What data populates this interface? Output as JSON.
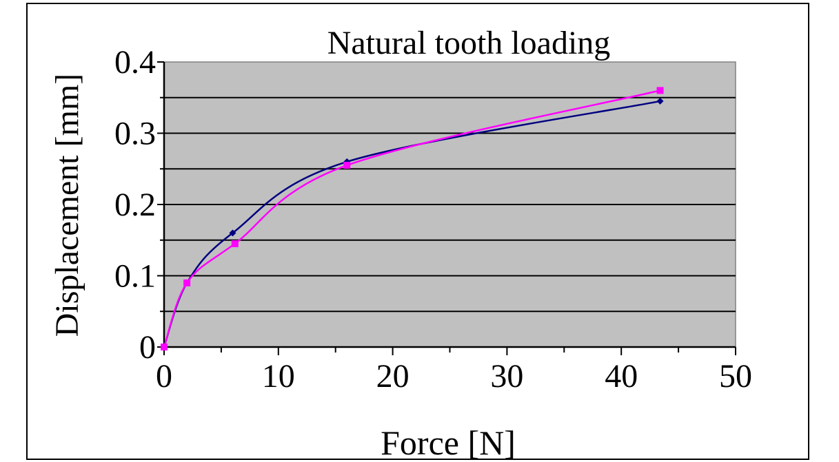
{
  "chart_data": {
    "type": "line",
    "title": "Natural tooth loading",
    "xlabel": "Force [N]",
    "ylabel": "Displacement [mm]",
    "xlim": [
      0,
      50
    ],
    "ylim": [
      0,
      0.4
    ],
    "x_ticks": [
      "0",
      "10",
      "20",
      "30",
      "40",
      "50"
    ],
    "y_ticks": [
      "0",
      "0.1",
      "0.2",
      "0.3",
      "0.4"
    ],
    "grid": true,
    "legend": "none",
    "plot_background": "#c0c0c0",
    "series": [
      {
        "color": "#000080",
        "marker": "diamond",
        "points": [
          {
            "x": 0,
            "y": 0
          },
          {
            "x": 2,
            "y": 0.09
          },
          {
            "x": 6,
            "y": 0.16
          },
          {
            "x": 16,
            "y": 0.26
          },
          {
            "x": 43.4,
            "y": 0.345
          }
        ]
      },
      {
        "color": "#ff00ff",
        "marker": "square",
        "points": [
          {
            "x": 0,
            "y": 0
          },
          {
            "x": 2,
            "y": 0.09
          },
          {
            "x": 6.2,
            "y": 0.145
          },
          {
            "x": 16,
            "y": 0.255
          },
          {
            "x": 43.4,
            "y": 0.36
          }
        ]
      }
    ]
  }
}
